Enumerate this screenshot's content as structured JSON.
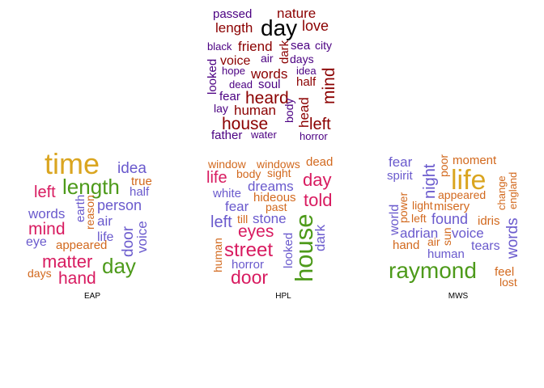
{
  "clouds": [
    {
      "id": "top",
      "caption": "",
      "words": [
        {
          "text": "passed",
          "color": "#4b0082"
        },
        {
          "text": "nature",
          "color": "#8b0000"
        },
        {
          "text": "day",
          "color": "#000000"
        },
        {
          "text": "length",
          "color": "#8b0000"
        },
        {
          "text": "love",
          "color": "#8b0000"
        },
        {
          "text": "black",
          "color": "#4b0082"
        },
        {
          "text": "friend",
          "color": "#8b0000"
        },
        {
          "text": "sea",
          "color": "#4b0082"
        },
        {
          "text": "city",
          "color": "#4b0082"
        },
        {
          "text": "dark",
          "color": "#8b0000"
        },
        {
          "text": "voice",
          "color": "#8b0000"
        },
        {
          "text": "air",
          "color": "#4b0082"
        },
        {
          "text": "days",
          "color": "#4b0082"
        },
        {
          "text": "hope",
          "color": "#4b0082"
        },
        {
          "text": "words",
          "color": "#8b0000"
        },
        {
          "text": "idea",
          "color": "#4b0082"
        },
        {
          "text": "looked",
          "color": "#4b0082"
        },
        {
          "text": "mind",
          "color": "#8b0000"
        },
        {
          "text": "dead",
          "color": "#4b0082"
        },
        {
          "text": "soul",
          "color": "#4b0082"
        },
        {
          "text": "half",
          "color": "#8b0000"
        },
        {
          "text": "fear",
          "color": "#4b0082"
        },
        {
          "text": "heard",
          "color": "#8b0000"
        },
        {
          "text": "lay",
          "color": "#4b0082"
        },
        {
          "text": "human",
          "color": "#8b0000"
        },
        {
          "text": "body",
          "color": "#4b0082"
        },
        {
          "text": "head",
          "color": "#8b0000"
        },
        {
          "text": "house",
          "color": "#8b0000"
        },
        {
          "text": "left",
          "color": "#8b0000"
        },
        {
          "text": "father",
          "color": "#4b0082"
        },
        {
          "text": "water",
          "color": "#4b0082"
        },
        {
          "text": "horror",
          "color": "#4b0082"
        }
      ]
    },
    {
      "id": "eap",
      "caption": "EAP",
      "words": [
        {
          "text": "time",
          "color": "#daa520"
        },
        {
          "text": "idea",
          "color": "#6a5acd"
        },
        {
          "text": "true",
          "color": "#d2691e"
        },
        {
          "text": "left",
          "color": "#d81b60"
        },
        {
          "text": "length",
          "color": "#4d9a1a"
        },
        {
          "text": "half",
          "color": "#6a5acd"
        },
        {
          "text": "earth",
          "color": "#6a5acd"
        },
        {
          "text": "reason",
          "color": "#d2691e"
        },
        {
          "text": "person",
          "color": "#6a5acd"
        },
        {
          "text": "words",
          "color": "#6a5acd"
        },
        {
          "text": "air",
          "color": "#6a5acd"
        },
        {
          "text": "mind",
          "color": "#d81b60"
        },
        {
          "text": "life",
          "color": "#6a5acd"
        },
        {
          "text": "door",
          "color": "#6a5acd"
        },
        {
          "text": "voice",
          "color": "#6a5acd"
        },
        {
          "text": "eye",
          "color": "#6a5acd"
        },
        {
          "text": "appeared",
          "color": "#d2691e"
        },
        {
          "text": "matter",
          "color": "#d81b60"
        },
        {
          "text": "day",
          "color": "#4d9a1a"
        },
        {
          "text": "days",
          "color": "#d2691e"
        },
        {
          "text": "hand",
          "color": "#d81b60"
        }
      ]
    },
    {
      "id": "hpl",
      "caption": "HPL",
      "words": [
        {
          "text": "window",
          "color": "#d2691e"
        },
        {
          "text": "windows",
          "color": "#d2691e"
        },
        {
          "text": "dead",
          "color": "#d2691e"
        },
        {
          "text": "life",
          "color": "#d81b60"
        },
        {
          "text": "body",
          "color": "#d2691e"
        },
        {
          "text": "sight",
          "color": "#d2691e"
        },
        {
          "text": "day",
          "color": "#d81b60"
        },
        {
          "text": "white",
          "color": "#6a5acd"
        },
        {
          "text": "dreams",
          "color": "#6a5acd"
        },
        {
          "text": "hideous",
          "color": "#d2691e"
        },
        {
          "text": "told",
          "color": "#d81b60"
        },
        {
          "text": "fear",
          "color": "#6a5acd"
        },
        {
          "text": "past",
          "color": "#d2691e"
        },
        {
          "text": "left",
          "color": "#6a5acd"
        },
        {
          "text": "till",
          "color": "#d2691e"
        },
        {
          "text": "stone",
          "color": "#6a5acd"
        },
        {
          "text": "house",
          "color": "#4d9a1a"
        },
        {
          "text": "dark",
          "color": "#6a5acd"
        },
        {
          "text": "eyes",
          "color": "#d81b60"
        },
        {
          "text": "human",
          "color": "#d2691e"
        },
        {
          "text": "looked",
          "color": "#6a5acd"
        },
        {
          "text": "street",
          "color": "#d81b60"
        },
        {
          "text": "horror",
          "color": "#6a5acd"
        },
        {
          "text": "door",
          "color": "#d81b60"
        }
      ]
    },
    {
      "id": "mws",
      "caption": "MWS",
      "words": [
        {
          "text": "fear",
          "color": "#6a5acd"
        },
        {
          "text": "poor",
          "color": "#d2691e"
        },
        {
          "text": "moment",
          "color": "#d2691e"
        },
        {
          "text": "spirit",
          "color": "#6a5acd"
        },
        {
          "text": "night",
          "color": "#6a5acd"
        },
        {
          "text": "life",
          "color": "#daa520"
        },
        {
          "text": "change",
          "color": "#d2691e"
        },
        {
          "text": "england",
          "color": "#d2691e"
        },
        {
          "text": "appeared",
          "color": "#d2691e"
        },
        {
          "text": "world",
          "color": "#6a5acd"
        },
        {
          "text": "power",
          "color": "#d2691e"
        },
        {
          "text": "light",
          "color": "#d2691e"
        },
        {
          "text": "misery",
          "color": "#d2691e"
        },
        {
          "text": "left",
          "color": "#d2691e"
        },
        {
          "text": "found",
          "color": "#6a5acd"
        },
        {
          "text": "idris",
          "color": "#d2691e"
        },
        {
          "text": "words",
          "color": "#6a5acd"
        },
        {
          "text": "adrian",
          "color": "#6a5acd"
        },
        {
          "text": "sun",
          "color": "#d2691e"
        },
        {
          "text": "voice",
          "color": "#6a5acd"
        },
        {
          "text": "hand",
          "color": "#d2691e"
        },
        {
          "text": "air",
          "color": "#d2691e"
        },
        {
          "text": "tears",
          "color": "#6a5acd"
        },
        {
          "text": "human",
          "color": "#6a5acd"
        },
        {
          "text": "raymond",
          "color": "#4d9a1a"
        },
        {
          "text": "feel",
          "color": "#d2691e"
        },
        {
          "text": "lost",
          "color": "#d2691e"
        }
      ]
    }
  ]
}
